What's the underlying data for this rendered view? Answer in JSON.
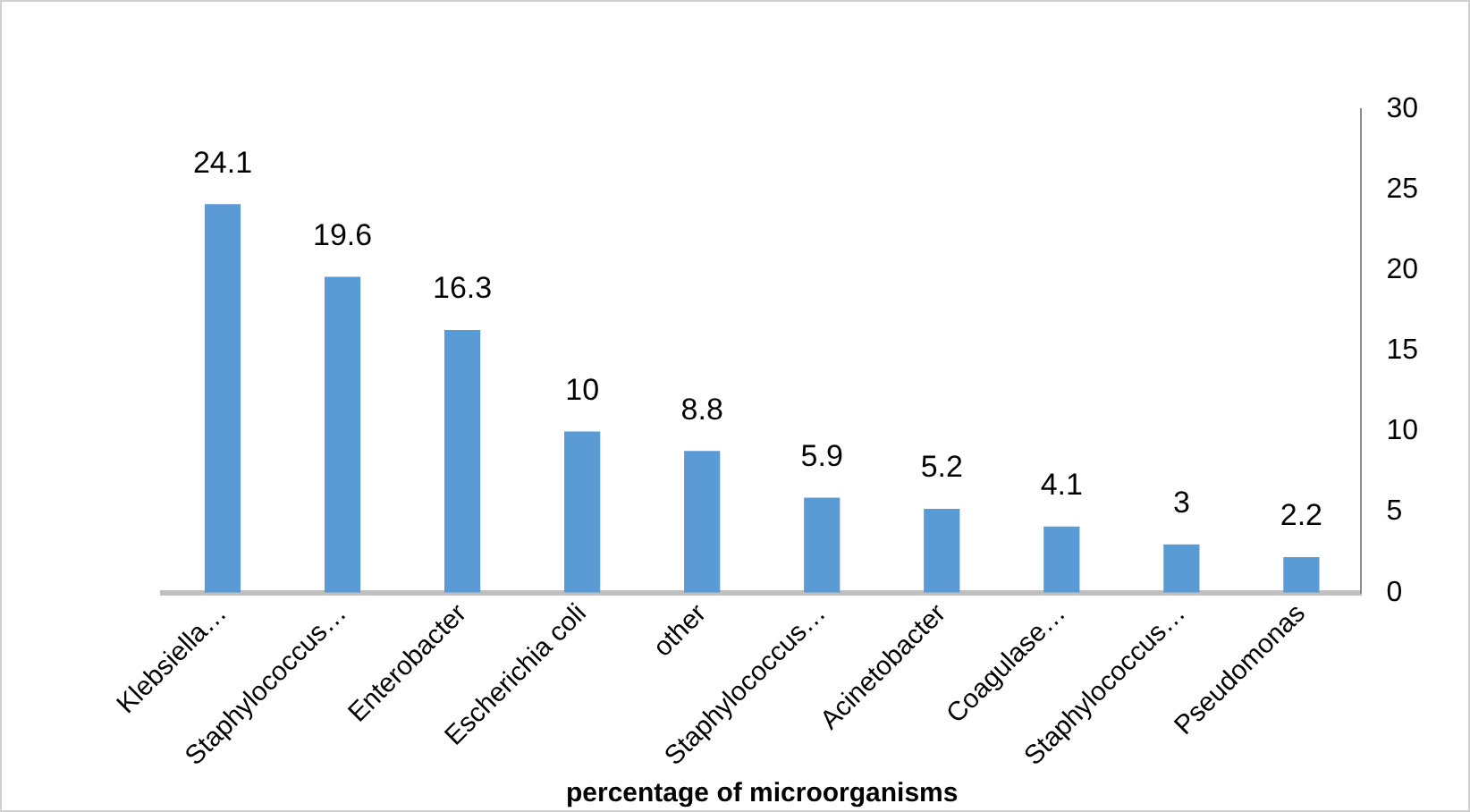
{
  "chart_data": {
    "type": "bar",
    "xlabel": "percentage of microorganisms",
    "categories": [
      "Klebsiella…",
      "Staphylococcus…",
      "Enterobacter",
      "Escherichia coli",
      "other",
      "Staphylococcus…",
      "Acinetobacter",
      "Coagulase…",
      "Staphylococcus…",
      "Pseudomonas"
    ],
    "values": [
      24.1,
      19.6,
      16.3,
      10,
      8.8,
      5.9,
      5.2,
      4.1,
      3,
      2.2
    ],
    "color": "#5b9bd5",
    "ylim": [
      0,
      30
    ],
    "yticks": [
      0,
      5,
      10,
      15,
      20,
      25,
      30
    ],
    "grid": false,
    "legend": false,
    "data_labels": true
  }
}
